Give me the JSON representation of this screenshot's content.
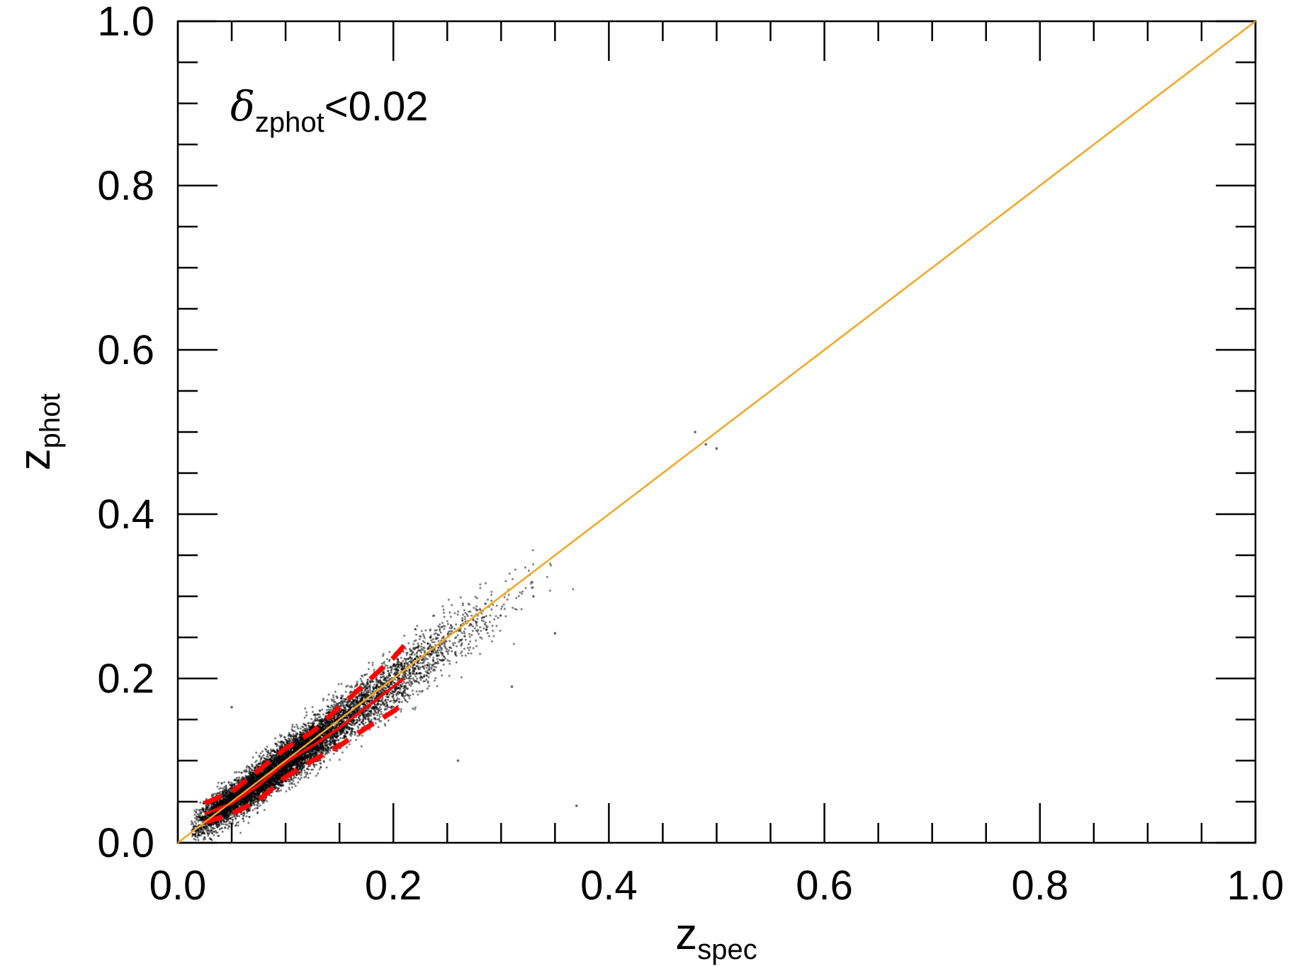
{
  "chart_data": {
    "type": "scatter",
    "xlabel": "z",
    "xlabel_subscript": "spec",
    "ylabel": "z",
    "ylabel_subscript": "phot",
    "xlim": [
      0.0,
      1.0
    ],
    "ylim": [
      0.0,
      1.0
    ],
    "x_ticks": [
      "0.0",
      "0.2",
      "0.4",
      "0.6",
      "0.8",
      "1.0"
    ],
    "y_ticks": [
      "0.0",
      "0.2",
      "0.4",
      "0.6",
      "0.8",
      "1.0"
    ],
    "grid": false,
    "legend": "none",
    "annotation": {
      "symbol": "δ",
      "subscript": "zphot",
      "text": "<0.02"
    },
    "colors": {
      "points": "#000000",
      "identity_line": "#f5a623",
      "median_line": "#ff0000",
      "percentile_lines": "#ff0000"
    },
    "series": [
      {
        "kind": "scatter",
        "description_points": "galaxy point cloud",
        "clusters": [
          {
            "x_center": 0.04,
            "y_center": 0.042,
            "count": 1500,
            "sx": 0.014,
            "sy": 0.01
          },
          {
            "x_center": 0.07,
            "y_center": 0.068,
            "count": 1900,
            "sx": 0.016,
            "sy": 0.012
          },
          {
            "x_center": 0.1,
            "y_center": 0.098,
            "count": 1900,
            "sx": 0.016,
            "sy": 0.013
          },
          {
            "x_center": 0.13,
            "y_center": 0.128,
            "count": 1500,
            "sx": 0.016,
            "sy": 0.014
          },
          {
            "x_center": 0.17,
            "y_center": 0.165,
            "count": 1000,
            "sx": 0.018,
            "sy": 0.016
          },
          {
            "x_center": 0.21,
            "y_center": 0.205,
            "count": 600,
            "sx": 0.02,
            "sy": 0.017
          },
          {
            "x_center": 0.25,
            "y_center": 0.243,
            "count": 300,
            "sx": 0.022,
            "sy": 0.018
          },
          {
            "x_center": 0.3,
            "y_center": 0.285,
            "count": 80,
            "sx": 0.025,
            "sy": 0.02
          }
        ],
        "outliers": [
          {
            "x": 0.48,
            "y": 0.5
          },
          {
            "x": 0.49,
            "y": 0.485
          },
          {
            "x": 0.5,
            "y": 0.48
          },
          {
            "x": 0.37,
            "y": 0.045
          },
          {
            "x": 0.26,
            "y": 0.1
          },
          {
            "x": 0.31,
            "y": 0.19
          },
          {
            "x": 0.35,
            "y": 0.255
          },
          {
            "x": 0.33,
            "y": 0.3
          },
          {
            "x": 0.05,
            "y": 0.165
          },
          {
            "x": 0.03,
            "y": 0.005
          }
        ]
      },
      {
        "kind": "line",
        "style": "solid",
        "points": [
          [
            0.0,
            0.0
          ],
          [
            1.0,
            1.0
          ]
        ]
      },
      {
        "kind": "line",
        "style": "solid",
        "points": [
          [
            0.025,
            0.035
          ],
          [
            0.05,
            0.048
          ],
          [
            0.075,
            0.07
          ],
          [
            0.1,
            0.098
          ],
          [
            0.125,
            0.118
          ],
          [
            0.15,
            0.14
          ],
          [
            0.175,
            0.165
          ],
          [
            0.2,
            0.19
          ],
          [
            0.21,
            0.2
          ]
        ]
      },
      {
        "kind": "line",
        "style": "dashed",
        "points": [
          [
            0.025,
            0.048
          ],
          [
            0.05,
            0.062
          ],
          [
            0.075,
            0.088
          ],
          [
            0.1,
            0.115
          ],
          [
            0.125,
            0.135
          ],
          [
            0.15,
            0.165
          ],
          [
            0.175,
            0.195
          ],
          [
            0.2,
            0.225
          ],
          [
            0.21,
            0.24
          ]
        ]
      },
      {
        "kind": "line",
        "style": "dashed",
        "points": [
          [
            0.025,
            0.025
          ],
          [
            0.05,
            0.035
          ],
          [
            0.075,
            0.052
          ],
          [
            0.1,
            0.08
          ],
          [
            0.125,
            0.1
          ],
          [
            0.15,
            0.118
          ],
          [
            0.175,
            0.14
          ],
          [
            0.2,
            0.16
          ],
          [
            0.21,
            0.17
          ]
        ]
      }
    ]
  }
}
